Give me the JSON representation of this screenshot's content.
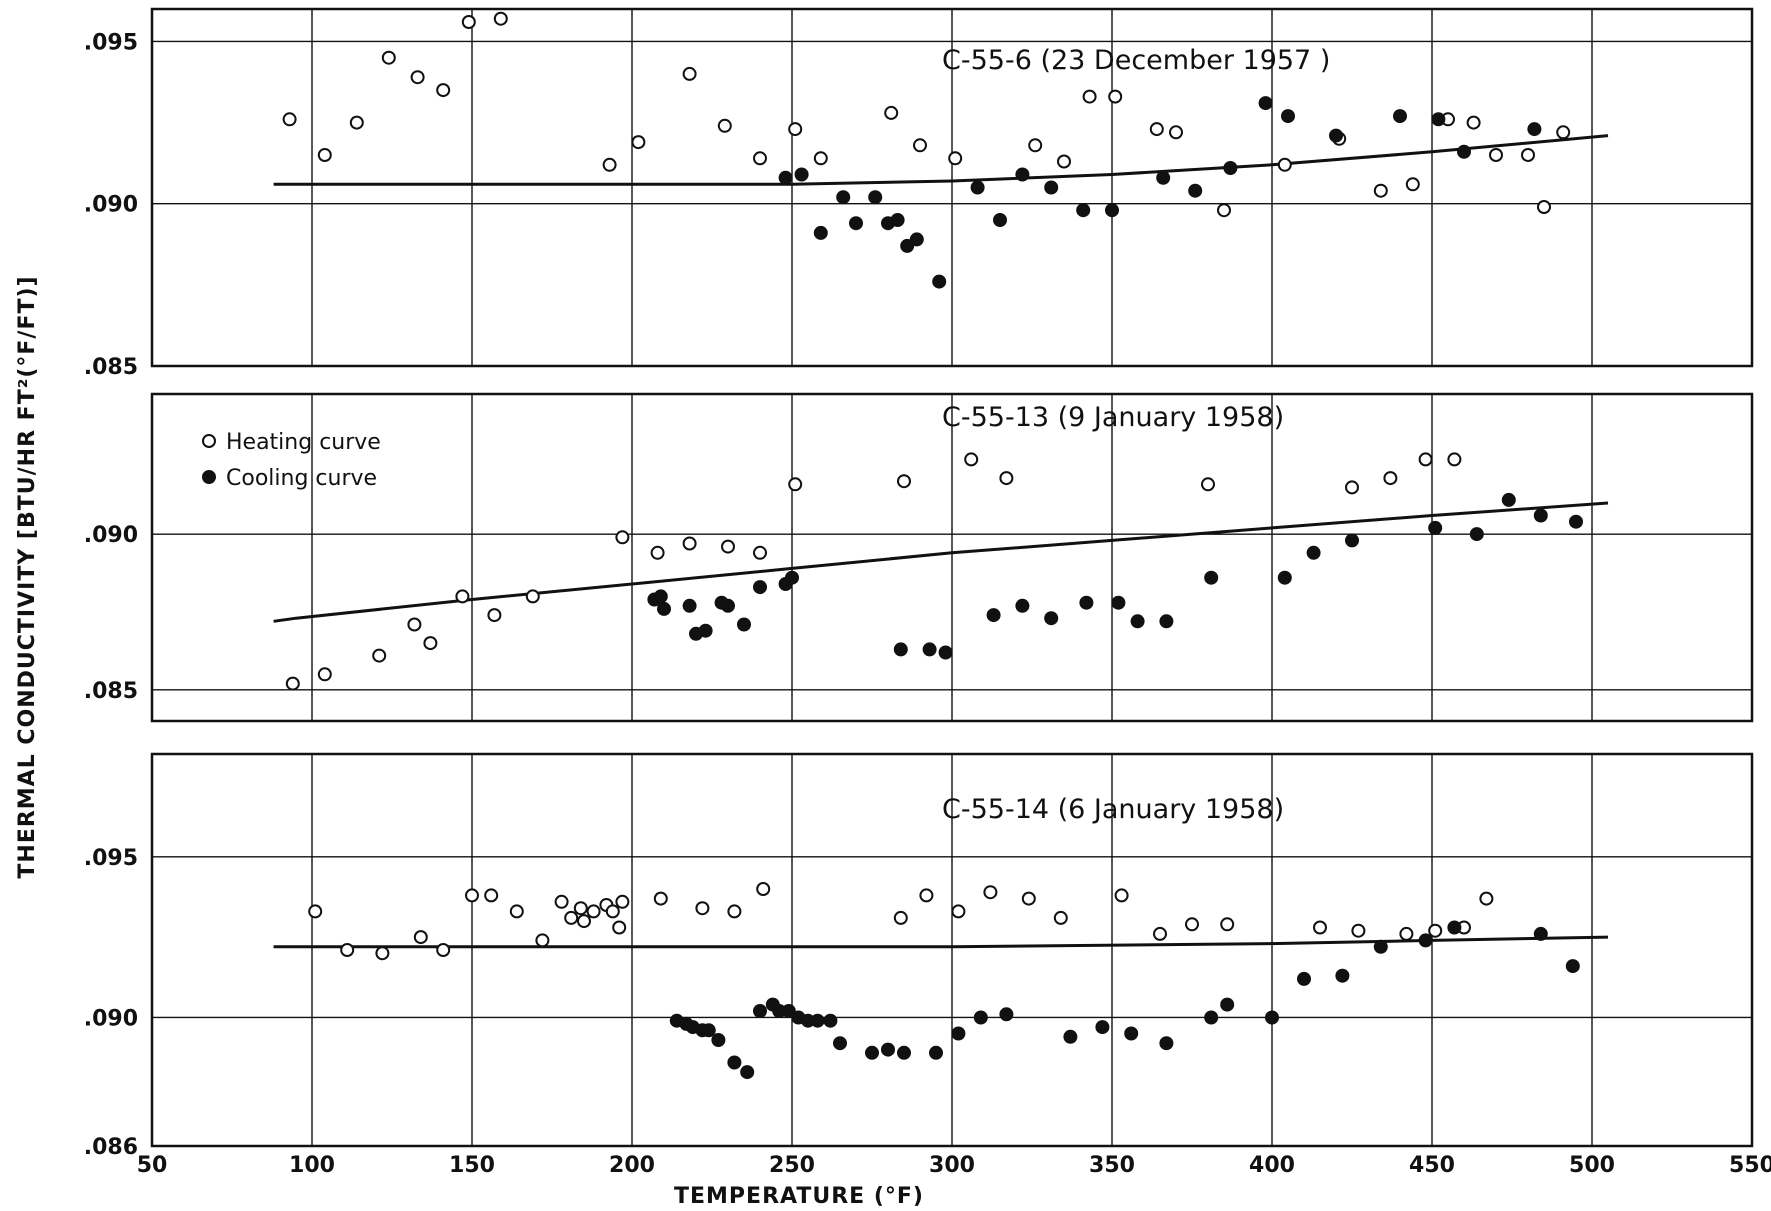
{
  "chart_data": {
    "type": "scatter",
    "xlabel": "TEMPERATURE (°F)",
    "ylabel": "THERMAL CONDUCTIVITY [BTU/HR FT²(°F/FT)]",
    "xlim": [
      50,
      550
    ],
    "x_ticks": [
      50,
      100,
      150,
      200,
      250,
      300,
      350,
      400,
      450,
      500,
      550
    ],
    "x_tick_labels": [
      "50",
      "100",
      "150",
      "200",
      "250",
      "300",
      "350",
      "400",
      "450",
      "500",
      "550"
    ],
    "grid": true,
    "legend": {
      "placement": "inside panel 2, top-left",
      "entries": [
        "Heating curve",
        "Cooling curve"
      ]
    },
    "panels": [
      {
        "title": "C-55-6   (23 December 1957 )",
        "ylim": [
          0.085,
          0.096
        ],
        "y_ticks": [
          0.085,
          0.09,
          0.095
        ],
        "y_tick_labels": [
          ".085",
          ".090",
          ".095"
        ],
        "fit_line": {
          "x": [
            88,
            150,
            200,
            250,
            300,
            350,
            400,
            450,
            505
          ],
          "y": [
            0.0906,
            0.0906,
            0.0906,
            0.0906,
            0.0907,
            0.0909,
            0.0912,
            0.0916,
            0.0921
          ]
        },
        "series": [
          {
            "name": "Heating curve",
            "marker": "open",
            "x": [
              93,
              104,
              114,
              124,
              133,
              141,
              149,
              159,
              193,
              202,
              218,
              229,
              240,
              251,
              259,
              281,
              290,
              301,
              326,
              335,
              343,
              351,
              364,
              370,
              385,
              404,
              421,
              434,
              444,
              455,
              463,
              470,
              480,
              485,
              491
            ],
            "y": [
              0.0926,
              0.0915,
              0.0925,
              0.0945,
              0.0939,
              0.0935,
              0.0956,
              0.0957,
              0.0912,
              0.0919,
              0.094,
              0.0924,
              0.0914,
              0.0923,
              0.0914,
              0.0928,
              0.0918,
              0.0914,
              0.0918,
              0.0913,
              0.0933,
              0.0933,
              0.0923,
              0.0922,
              0.0898,
              0.0912,
              0.092,
              0.0904,
              0.0906,
              0.0926,
              0.0925,
              0.0915,
              0.0915,
              0.0899,
              0.0922
            ]
          },
          {
            "name": "Cooling curve",
            "marker": "filled",
            "x": [
              248,
              253,
              259,
              266,
              270,
              276,
              280,
              283,
              286,
              289,
              296,
              308,
              315,
              322,
              331,
              341,
              350,
              366,
              376,
              387,
              398,
              405,
              420,
              440,
              452,
              460,
              482
            ],
            "y": [
              0.0908,
              0.0909,
              0.0891,
              0.0902,
              0.0894,
              0.0902,
              0.0894,
              0.0895,
              0.0887,
              0.0889,
              0.0876,
              0.0905,
              0.0895,
              0.0909,
              0.0905,
              0.0898,
              0.0898,
              0.0908,
              0.0904,
              0.0911,
              0.0931,
              0.0927,
              0.0921,
              0.0927,
              0.0926,
              0.0916,
              0.0923
            ]
          }
        ]
      },
      {
        "title": "C-55-13  (9 January 1958)",
        "ylim": [
          0.084,
          0.0945
        ],
        "y_ticks": [
          0.085,
          0.09
        ],
        "y_tick_labels": [
          ".085",
          ".090"
        ],
        "fit_line": {
          "x": [
            88,
            95,
            150,
            200,
            250,
            300,
            350,
            400,
            450,
            505
          ],
          "y": [
            0.0872,
            0.0873,
            0.0879,
            0.0884,
            0.0889,
            0.0894,
            0.0898,
            0.0902,
            0.0906,
            0.091
          ]
        },
        "series": [
          {
            "name": "Heating curve",
            "marker": "open",
            "x": [
              94,
              104,
              121,
              132,
              137,
              147,
              157,
              169,
              197,
              208,
              218,
              230,
              240,
              251,
              285,
              306,
              317,
              380,
              425,
              437,
              448,
              457
            ],
            "y": [
              0.0852,
              0.0855,
              0.0861,
              0.0871,
              0.0865,
              0.088,
              0.0874,
              0.088,
              0.0899,
              0.0894,
              0.0897,
              0.0896,
              0.0894,
              0.0916,
              0.0917,
              0.0924,
              0.0918,
              0.0916,
              0.0915,
              0.0918,
              0.0924,
              0.0924
            ]
          },
          {
            "name": "Cooling curve",
            "marker": "filled",
            "x": [
              207,
              209,
              210,
              218,
              220,
              223,
              228,
              230,
              235,
              240,
              248,
              250,
              284,
              293,
              298,
              313,
              322,
              331,
              342,
              352,
              358,
              367,
              381,
              404,
              413,
              425,
              451,
              464,
              474,
              484,
              495
            ],
            "y": [
              0.0879,
              0.088,
              0.0876,
              0.0877,
              0.0868,
              0.0869,
              0.0878,
              0.0877,
              0.0871,
              0.0883,
              0.0884,
              0.0886,
              0.0863,
              0.0863,
              0.0862,
              0.0874,
              0.0877,
              0.0873,
              0.0878,
              0.0878,
              0.0872,
              0.0872,
              0.0886,
              0.0886,
              0.0894,
              0.0898,
              0.0902,
              0.09,
              0.0911,
              0.0906,
              0.0904
            ]
          }
        ]
      },
      {
        "title": "C-55-14  (6 January 1958)",
        "ylim": [
          0.086,
          0.0982
        ],
        "y_ticks": [
          0.086,
          0.09,
          0.095
        ],
        "y_tick_labels": [
          ".086",
          ".090",
          ".095"
        ],
        "fit_line": {
          "x": [
            88,
            200,
            300,
            400,
            450,
            505
          ],
          "y": [
            0.0922,
            0.0922,
            0.0922,
            0.0923,
            0.0924,
            0.0925
          ]
        },
        "series": [
          {
            "name": "Heating curve",
            "marker": "open",
            "x": [
              101,
              111,
              122,
              134,
              141,
              150,
              156,
              164,
              172,
              178,
              181,
              184,
              185,
              188,
              192,
              194,
              196,
              197,
              209,
              222,
              232,
              241,
              284,
              292,
              302,
              312,
              324,
              334,
              353,
              365,
              375,
              386,
              415,
              427,
              442,
              451,
              460,
              467
            ],
            "y": [
              0.0933,
              0.0921,
              0.092,
              0.0925,
              0.0921,
              0.0938,
              0.0938,
              0.0933,
              0.0924,
              0.0936,
              0.0931,
              0.0934,
              0.093,
              0.0933,
              0.0935,
              0.0933,
              0.0928,
              0.0936,
              0.0937,
              0.0934,
              0.0933,
              0.094,
              0.0931,
              0.0938,
              0.0933,
              0.0939,
              0.0937,
              0.0931,
              0.0938,
              0.0926,
              0.0929,
              0.0929,
              0.0928,
              0.0927,
              0.0926,
              0.0927,
              0.0928,
              0.0937
            ]
          },
          {
            "name": "Cooling curve",
            "marker": "filled",
            "x": [
              214,
              217,
              219,
              222,
              224,
              227,
              232,
              236,
              240,
              244,
              246,
              249,
              252,
              255,
              258,
              262,
              265,
              275,
              280,
              285,
              295,
              302,
              309,
              317,
              337,
              347,
              356,
              367,
              381,
              386,
              400,
              410,
              422,
              434,
              448,
              457,
              484,
              494
            ],
            "y": [
              0.0899,
              0.0898,
              0.0897,
              0.0896,
              0.0896,
              0.0893,
              0.0886,
              0.0883,
              0.0902,
              0.0904,
              0.0902,
              0.0902,
              0.09,
              0.0899,
              0.0899,
              0.0899,
              0.0892,
              0.0889,
              0.089,
              0.0889,
              0.0889,
              0.0895,
              0.09,
              0.0901,
              0.0894,
              0.0897,
              0.0895,
              0.0892,
              0.09,
              0.0904,
              0.09,
              0.0912,
              0.0913,
              0.0922,
              0.0924,
              0.0928,
              0.0926,
              0.0916
            ]
          }
        ]
      }
    ]
  }
}
